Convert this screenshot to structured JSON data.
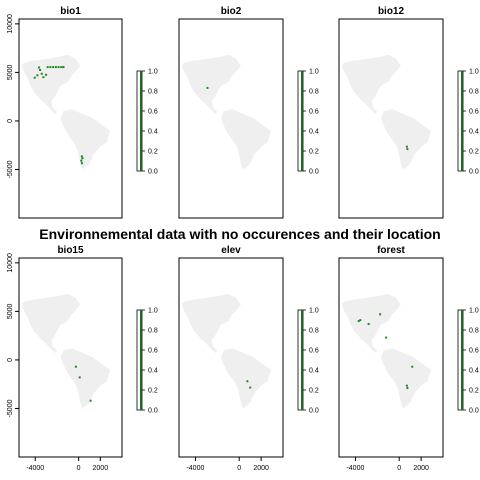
{
  "main_title": "Environnemental data with no occurences and their location",
  "chart_data": [
    {
      "type": "map",
      "title": "bio1",
      "xlim": [
        -5500,
        4000
      ],
      "ylim": [
        -10000,
        10500
      ],
      "xticks": [],
      "yticks": [
        -5000,
        0,
        5000,
        10000
      ],
      "legend_ticks": [
        "0.0",
        "0.2",
        "0.4",
        "0.6",
        "0.8",
        "1.0"
      ],
      "points": [
        [
          -3650,
          5500
        ],
        [
          -3550,
          5250
        ],
        [
          -3400,
          4850
        ],
        [
          -3250,
          4500
        ],
        [
          -3000,
          4750
        ],
        [
          -4050,
          4450
        ],
        [
          -3800,
          4700
        ],
        [
          -2850,
          5550
        ],
        [
          -2600,
          5550
        ],
        [
          -2350,
          5550
        ],
        [
          -2100,
          5550
        ],
        [
          -1850,
          5550
        ],
        [
          -1600,
          5550
        ],
        [
          -1400,
          5550
        ],
        [
          300,
          -3650
        ],
        [
          350,
          -3850
        ],
        [
          250,
          -4100
        ],
        [
          300,
          -4350
        ]
      ]
    },
    {
      "type": "map",
      "title": "bio2",
      "xlim": [
        -5500,
        4000
      ],
      "ylim": [
        -10000,
        10500
      ],
      "xticks": [],
      "yticks": [],
      "legend_ticks": [
        "0.0",
        "0.2",
        "0.4",
        "0.6",
        "0.8",
        "1.0"
      ],
      "points": [
        [
          -2900,
          3400
        ]
      ]
    },
    {
      "type": "map",
      "title": "bio12",
      "xlim": [
        -5500,
        4000
      ],
      "ylim": [
        -10000,
        10500
      ],
      "xticks": [],
      "yticks": [],
      "legend_ticks": [
        "0.0",
        "0.2",
        "0.4",
        "0.6",
        "0.8",
        "1.0"
      ],
      "points": [
        [
          700,
          -2650
        ],
        [
          750,
          -2900
        ]
      ]
    },
    {
      "type": "map",
      "title": "bio15",
      "xlim": [
        -5500,
        4000
      ],
      "ylim": [
        -10000,
        10500
      ],
      "xticks": [
        -4000,
        0,
        2000
      ],
      "yticks": [
        -5000,
        0,
        5000,
        10000
      ],
      "legend_ticks": [
        "0.0",
        "0.2",
        "0.4",
        "0.6",
        "0.8",
        "1.0"
      ],
      "points": [
        [
          -250,
          -700
        ],
        [
          100,
          -1800
        ],
        [
          1100,
          -4200
        ]
      ]
    },
    {
      "type": "map",
      "title": "elev",
      "xlim": [
        -5500,
        4000
      ],
      "ylim": [
        -10000,
        10500
      ],
      "xticks": [
        -4000,
        0,
        2000
      ],
      "yticks": [],
      "legend_ticks": [
        "0.0",
        "0.2",
        "0.4",
        "0.6",
        "0.8",
        "1.0"
      ],
      "points": [
        [
          750,
          -2200
        ],
        [
          1000,
          -2850
        ]
      ]
    },
    {
      "type": "map",
      "title": "forest",
      "xlim": [
        -5500,
        4000
      ],
      "ylim": [
        -10000,
        10500
      ],
      "xticks": [
        -4000,
        0,
        2000
      ],
      "yticks": [],
      "legend_ticks": [
        "0.0",
        "0.2",
        "0.4",
        "0.6",
        "0.8",
        "1.0"
      ],
      "points": [
        [
          -3700,
          4000
        ],
        [
          -3550,
          4100
        ],
        [
          -1750,
          4700
        ],
        [
          -2800,
          3700
        ],
        [
          -1200,
          2300
        ],
        [
          1200,
          -700
        ],
        [
          700,
          -2650
        ],
        [
          750,
          -2900
        ]
      ]
    }
  ]
}
